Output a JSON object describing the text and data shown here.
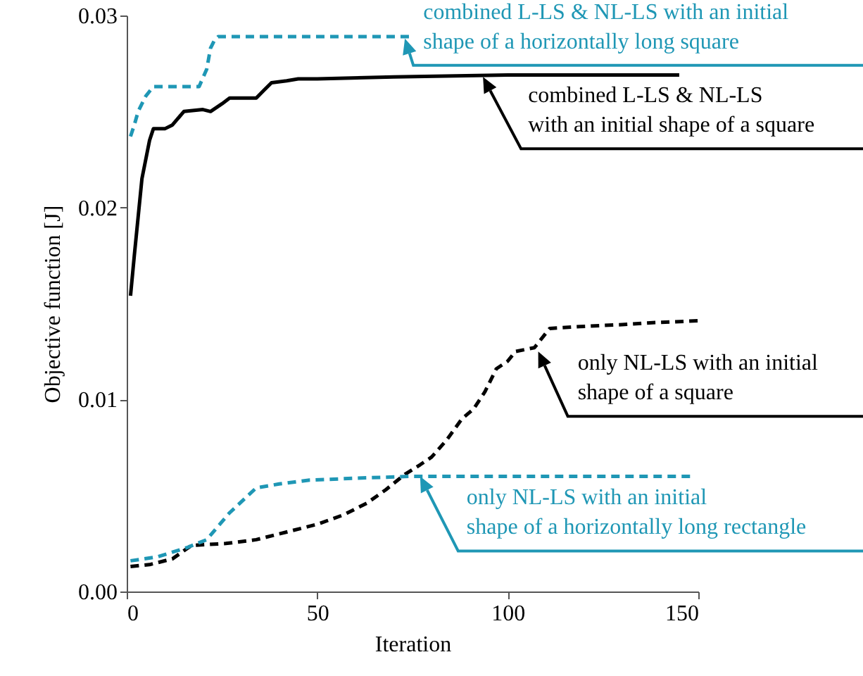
{
  "chart_data": {
    "type": "line",
    "xlabel": "Iteration",
    "ylabel": "Objective function [J]",
    "xlim": [
      0,
      150
    ],
    "xticks": [
      0,
      50,
      100,
      150
    ],
    "ylim": [
      0,
      0.03
    ],
    "yticks": [
      {
        "value": 0,
        "label": "0.00"
      },
      {
        "value": 0.01,
        "label": "0.01"
      },
      {
        "value": 0.02,
        "label": "0.02"
      },
      {
        "value": 0.03,
        "label": "0.03"
      }
    ],
    "grid": false,
    "marker": "none",
    "series": [
      {
        "color": "#1f97b5",
        "line_style": "dashed",
        "x": [
          1,
          2,
          3,
          5,
          7,
          10,
          15,
          19,
          21,
          22,
          23,
          24,
          30,
          50,
          75
        ],
        "values": [
          0.0237,
          0.0243,
          0.025,
          0.0258,
          0.0263,
          0.0263,
          0.0263,
          0.0263,
          0.0272,
          0.0283,
          0.0287,
          0.0289,
          0.0289,
          0.0289,
          0.0289
        ]
      },
      {
        "color": "#000000",
        "line_style": "solid",
        "x": [
          1,
          2,
          3,
          4,
          5,
          6,
          7,
          10,
          12,
          15,
          20,
          22,
          25,
          27,
          34,
          36,
          38,
          42,
          45,
          50,
          70,
          100,
          145
        ],
        "values": [
          0.0154,
          0.0175,
          0.0195,
          0.0215,
          0.0225,
          0.0235,
          0.0241,
          0.0241,
          0.0243,
          0.025,
          0.0251,
          0.025,
          0.0254,
          0.0257,
          0.0257,
          0.0261,
          0.0265,
          0.0266,
          0.0267,
          0.0267,
          0.0268,
          0.0269,
          0.0269
        ]
      },
      {
        "color": "#000000",
        "line_style": "dashed",
        "x": [
          1,
          6,
          12,
          17,
          26,
          34,
          42,
          50,
          57,
          63,
          68,
          73,
          77,
          80,
          84,
          88,
          91,
          94,
          97,
          100,
          102,
          107,
          111,
          119,
          130,
          138,
          150
        ],
        "values": [
          0.0013,
          0.0014,
          0.0017,
          0.0024,
          0.0025,
          0.0027,
          0.0031,
          0.0035,
          0.004,
          0.0046,
          0.0053,
          0.0061,
          0.0066,
          0.007,
          0.0079,
          0.009,
          0.0095,
          0.0104,
          0.0116,
          0.012,
          0.0125,
          0.0127,
          0.0137,
          0.0138,
          0.0139,
          0.014,
          0.0141
        ]
      },
      {
        "color": "#1f97b5",
        "line_style": "dashed",
        "x": [
          1,
          8,
          16,
          21,
          27,
          34,
          40,
          48,
          60,
          75,
          100,
          148
        ],
        "values": [
          0.0016,
          0.0018,
          0.0023,
          0.0027,
          0.0041,
          0.0054,
          0.0056,
          0.0058,
          0.0059,
          0.006,
          0.006,
          0.006
        ]
      }
    ],
    "annotations": [
      {
        "text": "combined L-LS  & NL-LS  with an initial\nshape  of a horizontally long square",
        "x": 73,
        "y": 0.0288
      },
      {
        "text": "combined L-LS  & NL-LS\nwith an initial shape  of a square",
        "x": 93.5,
        "y": 0.0268
      },
      {
        "text": "only NL-LS  with an initial\nshape  of a square",
        "x": 108,
        "y": 0.0125
      },
      {
        "text": "only NL-LS  with an initial\nshape  of  a horizontally long rectangle",
        "x": 77,
        "y": 0.006
      }
    ]
  }
}
